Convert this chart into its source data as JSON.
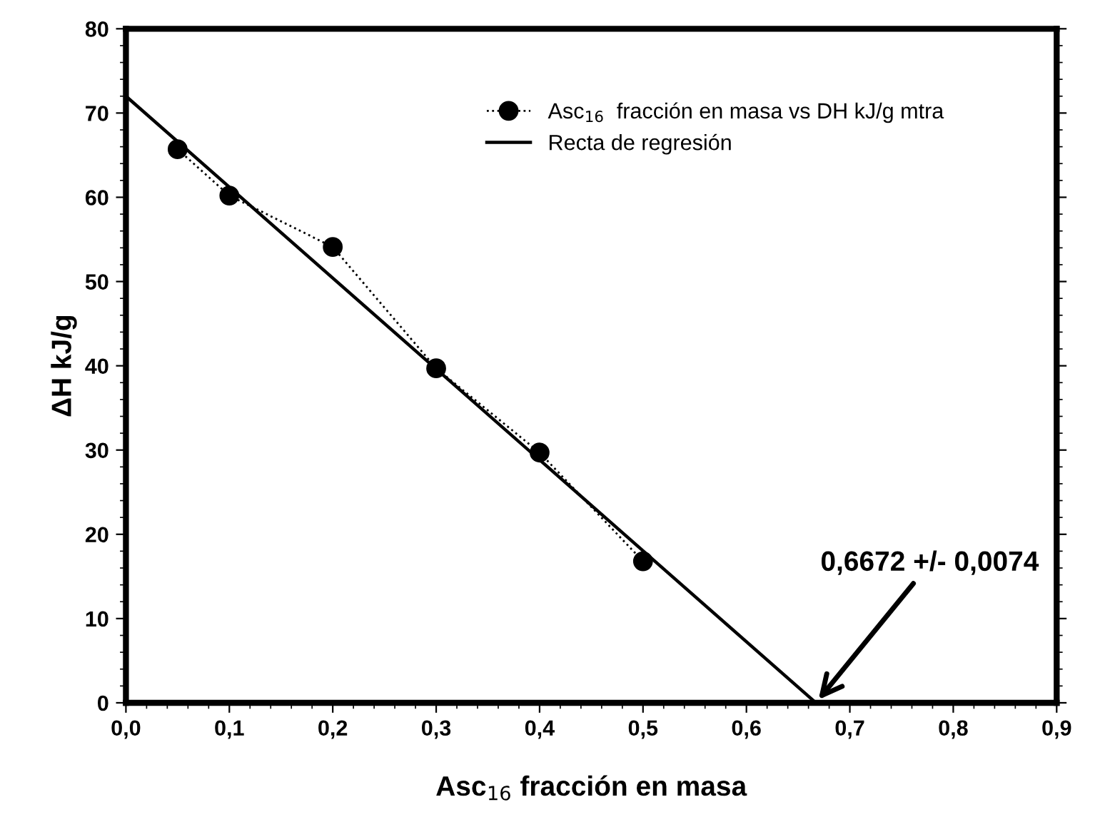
{
  "chart_data": {
    "type": "line",
    "xlabel": "Asc$_{16}$ fracción en masa",
    "ylabel": "ΔH kJ/g",
    "xlim": [
      0,
      0.9
    ],
    "ylim": [
      0,
      80
    ],
    "xticks": [
      {
        "value": 0,
        "label": "0,0"
      },
      {
        "value": 0.1,
        "label": "0,1"
      },
      {
        "value": 0.2,
        "label": "0,2"
      },
      {
        "value": 0.3,
        "label": "0,3"
      },
      {
        "value": 0.4,
        "label": "0,4"
      },
      {
        "value": 0.5,
        "label": "0,5"
      },
      {
        "value": 0.6,
        "label": "0,6"
      },
      {
        "value": 0.7,
        "label": "0,7"
      },
      {
        "value": 0.8,
        "label": "0,8"
      },
      {
        "value": 0.9,
        "label": "0,9"
      }
    ],
    "yticks": [
      0,
      10,
      20,
      30,
      40,
      50,
      60,
      70,
      80
    ],
    "grid": false,
    "legend": "top right",
    "series": [
      {
        "name": "Asc$_{16}$  fracción en masa vs DH kJ/g mtra",
        "color": "#000000",
        "marker": "circle",
        "line_style": "dotted",
        "x": [
          0.05,
          0.1,
          0.2,
          0.3,
          0.4,
          0.5
        ],
        "values": [
          65.7,
          60.2,
          54.1,
          39.7,
          29.7,
          16.8
        ]
      },
      {
        "name": "Recta de regresión",
        "color": "#000000",
        "marker": "none",
        "line_style": "solid",
        "x": [
          0,
          0.6672
        ],
        "values": [
          72.0,
          0
        ]
      }
    ],
    "annotations": [
      {
        "text": "0,6672 +/- 0,0074",
        "x": 0.6672,
        "y": 0
      }
    ]
  }
}
